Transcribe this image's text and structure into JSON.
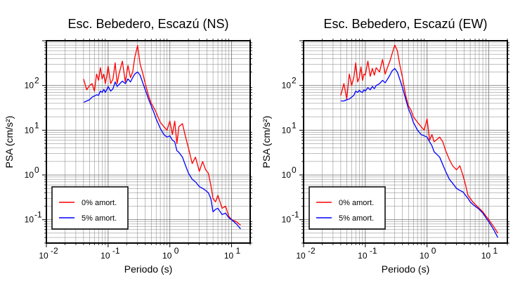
{
  "chart_data": [
    {
      "type": "line",
      "title": "Esc. Bebedero, Escazú (NS)",
      "xlabel": "Periodo (s)",
      "ylabel": "PSA (cm/s²)",
      "xscale": "log",
      "yscale": "log",
      "xlim": [
        0.01,
        20
      ],
      "ylim": [
        0.03,
        1000
      ],
      "grid": true,
      "legend_position": "bottom-left",
      "series": [
        {
          "name": "0% amort.",
          "color": "#ff0000",
          "x": [
            0.04,
            0.045,
            0.05,
            0.055,
            0.06,
            0.065,
            0.07,
            0.075,
            0.08,
            0.085,
            0.09,
            0.095,
            0.1,
            0.11,
            0.12,
            0.13,
            0.14,
            0.15,
            0.17,
            0.19,
            0.21,
            0.23,
            0.25,
            0.27,
            0.3,
            0.33,
            0.36,
            0.4,
            0.45,
            0.5,
            0.55,
            0.6,
            0.7,
            0.8,
            0.9,
            1.0,
            1.1,
            1.2,
            1.3,
            1.4,
            1.6,
            1.8,
            2.0,
            2.3,
            2.6,
            3.0,
            3.4,
            3.8,
            4.2,
            4.6,
            5.0,
            5.5,
            6.0,
            7.0,
            8.0,
            9.0,
            10,
            12,
            14
          ],
          "y": [
            140,
            80,
            100,
            110,
            75,
            180,
            130,
            250,
            140,
            180,
            110,
            160,
            270,
            110,
            140,
            320,
            110,
            180,
            350,
            120,
            280,
            150,
            200,
            420,
            780,
            300,
            200,
            110,
            60,
            40,
            32,
            25,
            15,
            12,
            10,
            16,
            8,
            16,
            5,
            12,
            14,
            7,
            4,
            1.8,
            2.5,
            1.2,
            2.0,
            1.3,
            1.1,
            0.6,
            0.3,
            0.25,
            0.35,
            0.18,
            0.2,
            0.12,
            0.1,
            0.09,
            0.075
          ]
        },
        {
          "name": "5% amort.",
          "color": "#0000ff",
          "x": [
            0.04,
            0.045,
            0.05,
            0.055,
            0.06,
            0.065,
            0.07,
            0.075,
            0.08,
            0.085,
            0.09,
            0.095,
            0.1,
            0.11,
            0.12,
            0.13,
            0.14,
            0.15,
            0.17,
            0.19,
            0.21,
            0.23,
            0.25,
            0.27,
            0.3,
            0.33,
            0.36,
            0.4,
            0.45,
            0.5,
            0.55,
            0.6,
            0.7,
            0.8,
            0.9,
            1.0,
            1.1,
            1.2,
            1.3,
            1.4,
            1.6,
            1.8,
            2.0,
            2.3,
            2.6,
            3.0,
            3.4,
            3.8,
            4.2,
            4.6,
            5.0,
            5.5,
            6.0,
            7.0,
            8.0,
            9.0,
            10,
            12,
            14
          ],
          "y": [
            42,
            45,
            48,
            55,
            58,
            62,
            60,
            75,
            70,
            82,
            70,
            80,
            95,
            75,
            85,
            120,
            95,
            105,
            125,
            110,
            140,
            120,
            150,
            180,
            200,
            170,
            120,
            80,
            50,
            35,
            25,
            18,
            11,
            8,
            7,
            7.5,
            6,
            5.5,
            3.5,
            3.2,
            2.5,
            1.6,
            1.1,
            0.8,
            0.7,
            0.55,
            0.5,
            0.45,
            0.4,
            0.3,
            0.15,
            0.17,
            0.18,
            0.13,
            0.14,
            0.11,
            0.1,
            0.08,
            0.062
          ]
        }
      ]
    },
    {
      "type": "line",
      "title": "Esc. Bebedero, Escazú (EW)",
      "xlabel": "Periodo (s)",
      "ylabel": "PSA (cm/s²)",
      "xscale": "log",
      "yscale": "log",
      "xlim": [
        0.01,
        20
      ],
      "ylim": [
        0.03,
        1000
      ],
      "grid": true,
      "legend_position": "bottom-left",
      "series": [
        {
          "name": "0% amort.",
          "color": "#ff0000",
          "x": [
            0.04,
            0.045,
            0.05,
            0.055,
            0.06,
            0.065,
            0.07,
            0.075,
            0.08,
            0.085,
            0.09,
            0.095,
            0.1,
            0.11,
            0.12,
            0.13,
            0.14,
            0.15,
            0.17,
            0.19,
            0.21,
            0.23,
            0.25,
            0.27,
            0.3,
            0.33,
            0.36,
            0.4,
            0.45,
            0.5,
            0.55,
            0.6,
            0.7,
            0.8,
            0.9,
            1.0,
            1.1,
            1.2,
            1.3,
            1.4,
            1.6,
            1.8,
            2.0,
            2.3,
            2.6,
            3.0,
            3.4,
            3.8,
            4.2,
            4.6,
            5.0,
            5.5,
            6.0,
            7.0,
            8.0,
            9.0,
            10,
            12,
            14
          ],
          "y": [
            60,
            110,
            50,
            180,
            100,
            150,
            320,
            120,
            150,
            260,
            130,
            180,
            170,
            350,
            160,
            240,
            170,
            250,
            200,
            380,
            180,
            260,
            350,
            500,
            800,
            600,
            300,
            150,
            60,
            35,
            28,
            20,
            15,
            12,
            10,
            18,
            6,
            8,
            5.5,
            6,
            7,
            5.5,
            3.5,
            2.2,
            1.6,
            1.3,
            1.6,
            1.0,
            0.6,
            0.35,
            0.3,
            0.25,
            0.22,
            0.18,
            0.15,
            0.12,
            0.1,
            0.07,
            0.05
          ]
        },
        {
          "name": "5% amort.",
          "color": "#0000ff",
          "x": [
            0.04,
            0.045,
            0.05,
            0.055,
            0.06,
            0.065,
            0.07,
            0.075,
            0.08,
            0.085,
            0.09,
            0.095,
            0.1,
            0.11,
            0.12,
            0.13,
            0.14,
            0.15,
            0.17,
            0.19,
            0.21,
            0.23,
            0.25,
            0.27,
            0.3,
            0.33,
            0.36,
            0.4,
            0.45,
            0.5,
            0.55,
            0.6,
            0.7,
            0.8,
            0.9,
            1.0,
            1.1,
            1.2,
            1.3,
            1.4,
            1.6,
            1.8,
            2.0,
            2.3,
            2.6,
            3.0,
            3.4,
            3.8,
            4.2,
            4.6,
            5.0,
            5.5,
            6.0,
            7.0,
            8.0,
            9.0,
            10,
            12,
            14
          ],
          "y": [
            45,
            45,
            48,
            50,
            55,
            60,
            75,
            70,
            78,
            72,
            70,
            80,
            75,
            90,
            80,
            95,
            85,
            100,
            110,
            130,
            115,
            140,
            170,
            210,
            240,
            200,
            140,
            90,
            50,
            30,
            22,
            15,
            10,
            8,
            7.5,
            7,
            5.5,
            4.5,
            3.3,
            3.0,
            2.5,
            1.7,
            1.2,
            0.8,
            0.65,
            0.5,
            0.45,
            0.42,
            0.35,
            0.3,
            0.25,
            0.22,
            0.2,
            0.17,
            0.14,
            0.11,
            0.09,
            0.06,
            0.04
          ]
        }
      ]
    }
  ]
}
